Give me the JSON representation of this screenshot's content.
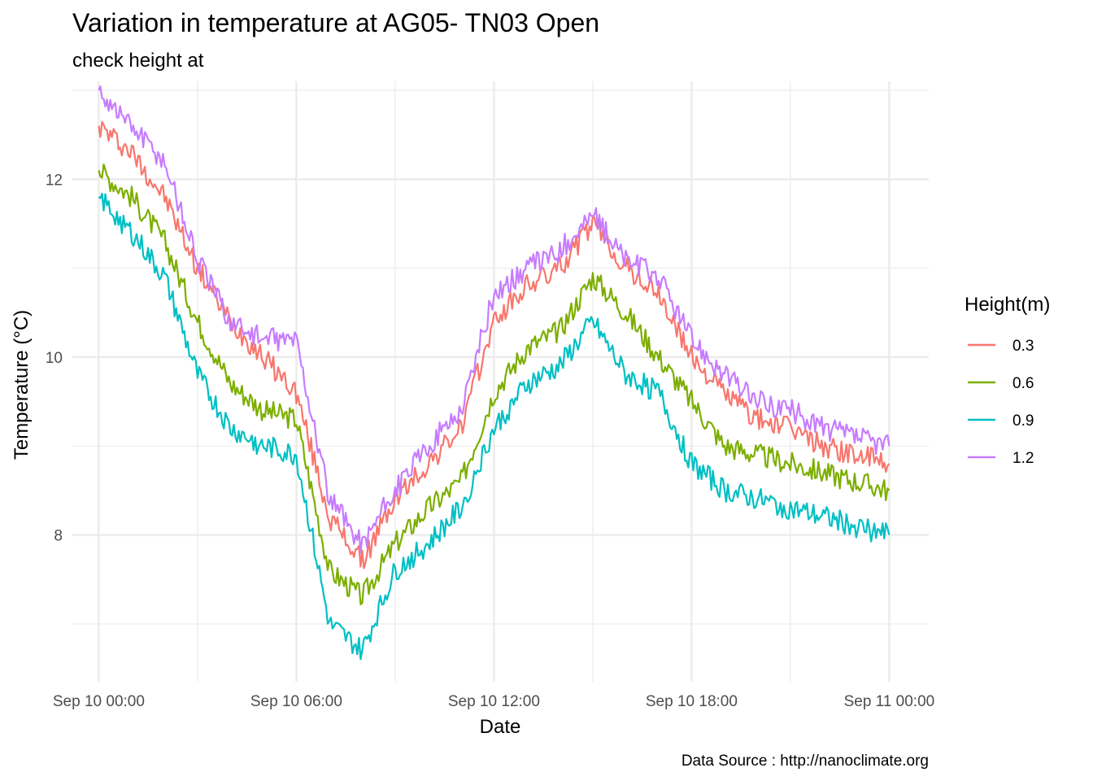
{
  "chart_data": {
    "type": "line",
    "title": "Variation in temperature at AG05- TN03 Open",
    "subtitle": "check height at",
    "xlabel": "Date",
    "ylabel": "Temperature (°C)",
    "caption": "Data Source : http://nanoclimate.org",
    "x_ticks": [
      "Sep 10 00:00",
      "Sep 10 06:00",
      "Sep 10 12:00",
      "Sep 10 18:00",
      "Sep 11 00:00"
    ],
    "y_ticks": [
      8,
      10,
      12
    ],
    "xlim_hours": [
      -0.8,
      25.2
    ],
    "ylim": [
      6.35,
      13.1
    ],
    "grid": true,
    "legend": {
      "title": "Height(m)",
      "position": "right"
    },
    "x_hours": [
      0,
      1,
      2,
      3,
      4,
      5,
      6,
      7,
      8,
      9,
      10,
      11,
      12,
      13,
      14,
      15,
      16,
      17,
      18,
      19,
      20,
      21,
      22,
      23,
      24
    ],
    "series": [
      {
        "name": "0.3",
        "color": "#F8766D",
        "values": [
          12.6,
          12.3,
          11.8,
          11.0,
          10.4,
          10.0,
          9.6,
          8.2,
          7.7,
          8.4,
          8.8,
          9.2,
          10.4,
          10.8,
          11.0,
          11.5,
          11.0,
          10.7,
          10.0,
          9.6,
          9.3,
          9.2,
          9.0,
          8.9,
          8.8
        ]
      },
      {
        "name": "0.6",
        "color": "#7CAE00",
        "values": [
          12.1,
          11.8,
          11.3,
          10.4,
          9.7,
          9.4,
          9.3,
          7.6,
          7.3,
          7.9,
          8.3,
          8.6,
          9.6,
          10.1,
          10.3,
          10.9,
          10.5,
          10.0,
          9.5,
          9.0,
          8.9,
          8.8,
          8.7,
          8.6,
          8.5
        ]
      },
      {
        "name": "0.9",
        "color": "#00BFC4",
        "values": [
          11.8,
          11.4,
          10.9,
          9.8,
          9.2,
          9.0,
          8.9,
          7.0,
          6.7,
          7.6,
          7.9,
          8.3,
          9.2,
          9.7,
          9.9,
          10.4,
          9.8,
          9.6,
          8.8,
          8.5,
          8.4,
          8.3,
          8.2,
          8.1,
          8.0
        ]
      },
      {
        "name": "1.2",
        "color": "#C77CFF",
        "values": [
          13.0,
          12.6,
          12.2,
          11.1,
          10.4,
          10.2,
          10.2,
          8.4,
          7.9,
          8.5,
          9.0,
          9.4,
          10.7,
          11.0,
          11.2,
          11.6,
          11.1,
          10.9,
          10.2,
          9.8,
          9.5,
          9.4,
          9.2,
          9.1,
          9.0
        ]
      }
    ]
  }
}
